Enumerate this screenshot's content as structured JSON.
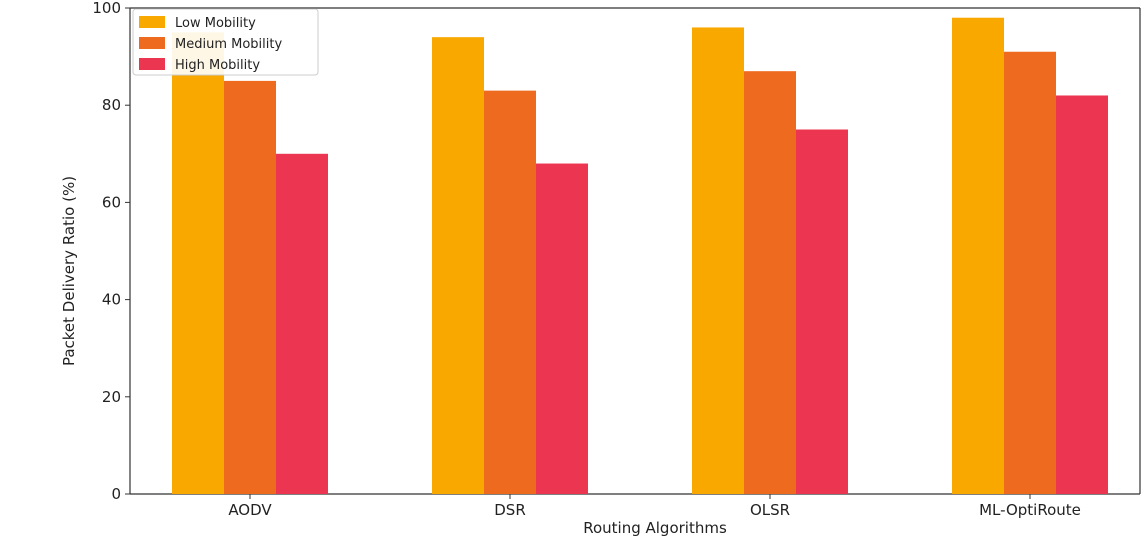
{
  "chart_data": {
    "type": "bar",
    "categories": [
      "AODV",
      "DSR",
      "OLSR",
      "ML-OptiRoute"
    ],
    "series": [
      {
        "name": "Low Mobility",
        "color": "#F9A800",
        "values": [
          95,
          94,
          96,
          98
        ]
      },
      {
        "name": "Medium Mobility",
        "color": "#EE6A1F",
        "values": [
          85,
          83,
          87,
          91
        ]
      },
      {
        "name": "High Mobility",
        "color": "#EC3550",
        "values": [
          70,
          68,
          75,
          82
        ]
      }
    ],
    "title": "",
    "xlabel": "Routing Algorithms",
    "ylabel": "Packet Delivery Ratio (%)",
    "ylim": [
      0,
      100
    ],
    "yticks": [
      0,
      20,
      40,
      60,
      80,
      100
    ],
    "grid": false,
    "legend_position": "top-left"
  }
}
